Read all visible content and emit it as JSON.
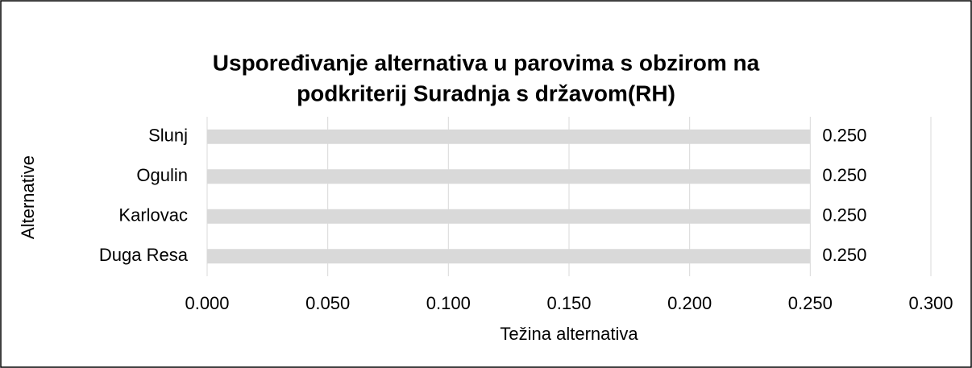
{
  "chart_data": {
    "type": "hbar",
    "title": [
      "Uspoređivanje alternativa u parovima s obzirom na",
      "podkriterij Suradnja s državom(RH)"
    ],
    "x_label": "Težina alternativa",
    "y_label": "Alternative",
    "categories": [
      "Slunj",
      "Ogulin",
      "Karlovac",
      "Duga Resa"
    ],
    "values": [
      0.25,
      0.25,
      0.25,
      0.25
    ],
    "value_labels": [
      "0.250",
      "0.250",
      "0.250",
      "0.250"
    ],
    "color": "#d9d9d9",
    "xlim": [
      0,
      0.3
    ],
    "xticks": [
      {
        "value": 0,
        "label": "0.000"
      },
      {
        "value": 0.05,
        "label": "0.050"
      },
      {
        "value": 0.1,
        "label": "0.100"
      },
      {
        "value": 0.15,
        "label": "0.150"
      },
      {
        "value": 0.2,
        "label": "0.200"
      },
      {
        "value": 0.25,
        "label": "0.250"
      },
      {
        "value": 0.3,
        "label": "0.300"
      }
    ],
    "grid": true
  }
}
